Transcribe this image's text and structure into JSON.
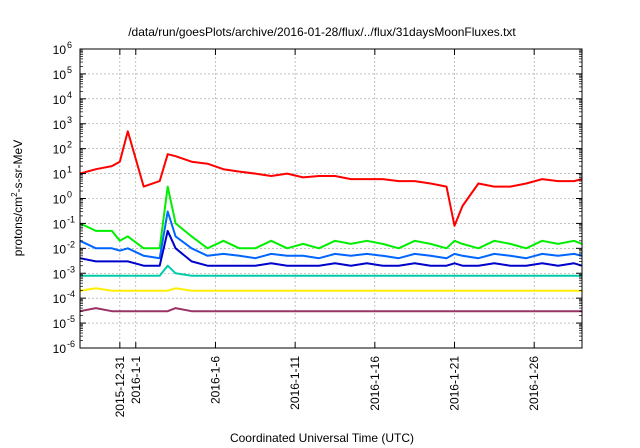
{
  "chart_data": {
    "type": "line",
    "title": "/data/run/goesPlots/archive/2016-01-28/flux/../flux/31daysMoonFluxes.txt",
    "xlabel": "Coordinated Universal Time (UTC)",
    "ylabel": "protons/cm²-s-sr-MeV",
    "ylabel_parts": {
      "base": "protons/cm",
      "sup": "2",
      "rest": "-s-sr-MeV"
    },
    "yscale": "log",
    "ylim": [
      1e-06,
      1000000.0
    ],
    "yticks": [
      {
        "base": "10",
        "exp": "6",
        "value": 1000000.0
      },
      {
        "base": "10",
        "exp": "5",
        "value": 100000.0
      },
      {
        "base": "10",
        "exp": "4",
        "value": 10000.0
      },
      {
        "base": "10",
        "exp": "3",
        "value": 1000.0
      },
      {
        "base": "10",
        "exp": "2",
        "value": 100.0
      },
      {
        "base": "10",
        "exp": "1",
        "value": 10.0
      },
      {
        "base": "10",
        "exp": "0",
        "value": 1
      },
      {
        "base": "10",
        "exp": "-1",
        "value": 0.1
      },
      {
        "base": "10",
        "exp": "-2",
        "value": 0.01
      },
      {
        "base": "10",
        "exp": "-3",
        "value": 0.001
      },
      {
        "base": "10",
        "exp": "-4",
        "value": 0.0001
      },
      {
        "base": "10",
        "exp": "-5",
        "value": 1e-05
      },
      {
        "base": "10",
        "exp": "-6",
        "value": 1e-06
      }
    ],
    "xlim": [
      "2015-12-28T12:00",
      "2016-01-29T00:00"
    ],
    "xticks": [
      {
        "label": "2015-12-31",
        "date": "2015-12-31"
      },
      {
        "label": "2016-1-1",
        "date": "2016-01-01"
      },
      {
        "label": "2016-1-6",
        "date": "2016-01-06"
      },
      {
        "label": "2016-1-11",
        "date": "2016-01-11"
      },
      {
        "label": "2016-1-16",
        "date": "2016-01-16"
      },
      {
        "label": "2016-1-21",
        "date": "2016-01-21"
      },
      {
        "label": "2016-1-26",
        "date": "2016-01-26"
      }
    ],
    "grid": true,
    "legend": "none",
    "x": [
      "2015-12-28T12:00",
      "2015-12-29T12:00",
      "2015-12-30T12:00",
      "2015-12-31T00:00",
      "2015-12-31T12:00",
      "2016-01-01T12:00",
      "2016-01-02T12:00",
      "2016-01-03T00:00",
      "2016-01-03T12:00",
      "2016-01-04T12:00",
      "2016-01-05T12:00",
      "2016-01-06T12:00",
      "2016-01-07T12:00",
      "2016-01-08T12:00",
      "2016-01-09T12:00",
      "2016-01-10T12:00",
      "2016-01-11T12:00",
      "2016-01-12T12:00",
      "2016-01-13T12:00",
      "2016-01-14T12:00",
      "2016-01-15T12:00",
      "2016-01-16T12:00",
      "2016-01-17T12:00",
      "2016-01-18T12:00",
      "2016-01-19T12:00",
      "2016-01-20T12:00",
      "2016-01-21T00:00",
      "2016-01-21T12:00",
      "2016-01-22T12:00",
      "2016-01-23T12:00",
      "2016-01-24T12:00",
      "2016-01-25T12:00",
      "2016-01-26T12:00",
      "2016-01-27T12:00",
      "2016-01-28T12:00",
      "2016-01-29T00:00"
    ],
    "series": [
      {
        "color": "#ff0000",
        "values": [
          10,
          15,
          20,
          30,
          500,
          3,
          5,
          60,
          50,
          30,
          25,
          15,
          12,
          10,
          8,
          10,
          7,
          8,
          8,
          6,
          6,
          6,
          5,
          5,
          4,
          3,
          0.08,
          0.5,
          4,
          3,
          3,
          4,
          6,
          5,
          5,
          6
        ]
      },
      {
        "color": "#00ee00",
        "values": [
          0.1,
          0.05,
          0.05,
          0.02,
          0.03,
          0.01,
          0.01,
          3,
          0.1,
          0.03,
          0.01,
          0.02,
          0.01,
          0.01,
          0.02,
          0.01,
          0.015,
          0.01,
          0.02,
          0.015,
          0.02,
          0.015,
          0.01,
          0.02,
          0.015,
          0.01,
          0.02,
          0.015,
          0.01,
          0.02,
          0.015,
          0.01,
          0.02,
          0.015,
          0.02,
          0.015
        ]
      },
      {
        "color": "#0066ff",
        "values": [
          0.02,
          0.01,
          0.01,
          0.008,
          0.01,
          0.005,
          0.004,
          0.3,
          0.03,
          0.01,
          0.005,
          0.006,
          0.005,
          0.004,
          0.006,
          0.005,
          0.005,
          0.004,
          0.006,
          0.005,
          0.006,
          0.005,
          0.004,
          0.006,
          0.005,
          0.004,
          0.006,
          0.005,
          0.004,
          0.006,
          0.005,
          0.004,
          0.006,
          0.005,
          0.006,
          0.005
        ]
      },
      {
        "color": "#0000cc",
        "values": [
          0.004,
          0.003,
          0.003,
          0.003,
          0.003,
          0.002,
          0.002,
          0.05,
          0.01,
          0.003,
          0.002,
          0.002,
          0.002,
          0.002,
          0.0025,
          0.002,
          0.002,
          0.002,
          0.0025,
          0.002,
          0.0025,
          0.002,
          0.002,
          0.0025,
          0.002,
          0.002,
          0.0025,
          0.002,
          0.002,
          0.0025,
          0.002,
          0.002,
          0.0025,
          0.002,
          0.0025,
          0.002
        ]
      },
      {
        "color": "#00ccaa",
        "values": [
          0.0008,
          0.0008,
          0.0008,
          0.0008,
          0.0008,
          0.0008,
          0.0008,
          0.002,
          0.001,
          0.0008,
          0.0008,
          0.0008,
          0.0008,
          0.0008,
          0.0008,
          0.0008,
          0.0008,
          0.0008,
          0.0008,
          0.0008,
          0.0008,
          0.0008,
          0.0008,
          0.0008,
          0.0008,
          0.0008,
          0.0008,
          0.0008,
          0.0008,
          0.0008,
          0.0008,
          0.0008,
          0.0008,
          0.0008,
          0.0008,
          0.0008
        ]
      },
      {
        "color": "#ffee00",
        "values": [
          0.0002,
          0.00025,
          0.0002,
          0.0002,
          0.0002,
          0.0002,
          0.0002,
          0.0002,
          0.00025,
          0.0002,
          0.0002,
          0.0002,
          0.0002,
          0.0002,
          0.0002,
          0.0002,
          0.0002,
          0.0002,
          0.0002,
          0.0002,
          0.0002,
          0.0002,
          0.0002,
          0.0002,
          0.0002,
          0.0002,
          0.0002,
          0.0002,
          0.0002,
          0.0002,
          0.0002,
          0.0002,
          0.0002,
          0.0002,
          0.0002,
          0.0002
        ]
      },
      {
        "color": "#993366",
        "values": [
          3e-05,
          4e-05,
          3e-05,
          3e-05,
          3e-05,
          3e-05,
          3e-05,
          3e-05,
          4e-05,
          3e-05,
          3e-05,
          3e-05,
          3e-05,
          3e-05,
          3e-05,
          3e-05,
          3e-05,
          3e-05,
          3e-05,
          3e-05,
          3e-05,
          3e-05,
          3e-05,
          3e-05,
          3e-05,
          3e-05,
          3e-05,
          3e-05,
          3e-05,
          3e-05,
          3e-05,
          3e-05,
          3e-05,
          3e-05,
          3e-05,
          3e-05
        ]
      }
    ]
  }
}
